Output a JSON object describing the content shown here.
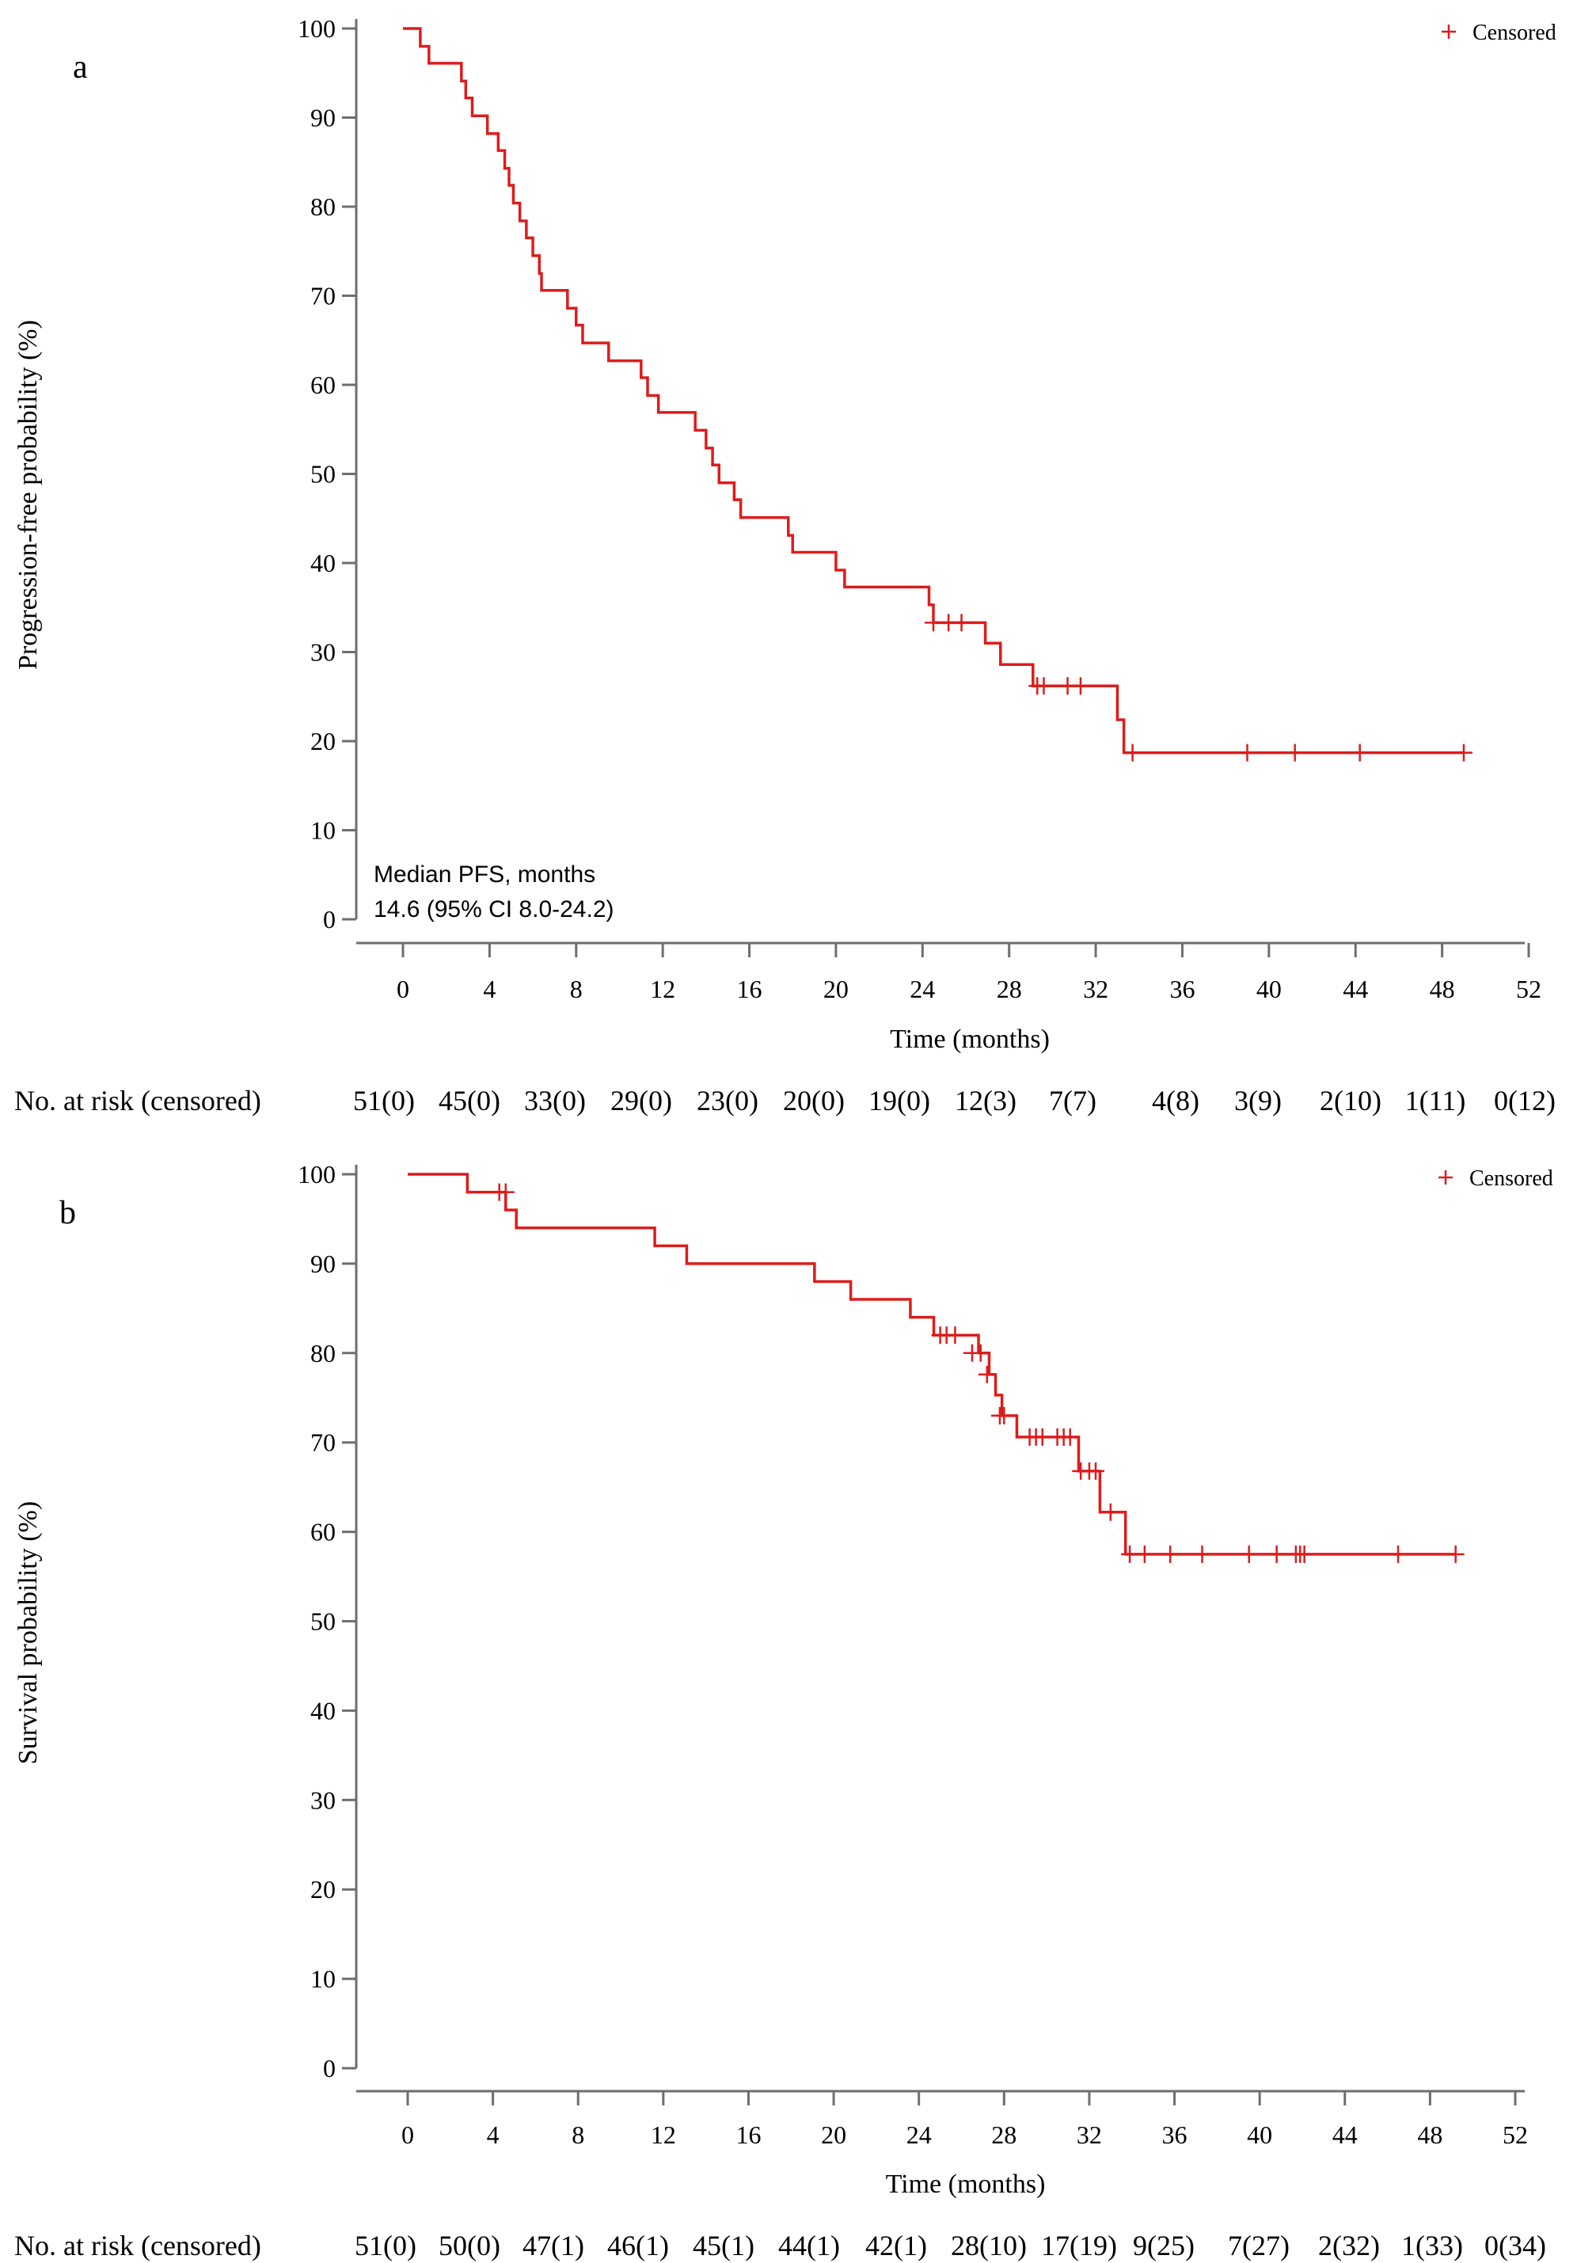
{
  "chart_data": [
    {
      "panel_label": "a",
      "type": "line",
      "step": true,
      "title": "",
      "xlabel": "Time (months)",
      "ylabel": "Progression-free probability (%)",
      "xlim": [
        0,
        52
      ],
      "ylim": [
        0,
        100
      ],
      "xticks": [
        "0",
        "4",
        "8",
        "12",
        "16",
        "20",
        "24",
        "28",
        "32",
        "36",
        "40",
        "44",
        "48",
        "52"
      ],
      "yticks": [
        "0",
        "10",
        "20",
        "30",
        "40",
        "50",
        "60",
        "70",
        "80",
        "90",
        "100"
      ],
      "grid": false,
      "color": "#dd1c1c",
      "legend": {
        "position": "top-right",
        "entries": [
          {
            "marker": "+",
            "label": "Censored"
          }
        ]
      },
      "annotation": [
        "Median PFS, months",
        "14.6 (95% CI 8.0-24.2)"
      ],
      "risk_table": {
        "label": "No. at risk (censored)",
        "values": [
          "51(0)",
          "45(0)",
          "33(0)",
          "29(0)",
          "23(0)",
          "20(0)",
          "19(0)",
          "12(3)",
          "7(7)",
          "4(8)",
          "3(9)",
          "2(10)",
          "1(11)",
          "0(12)"
        ]
      },
      "series": [
        {
          "steps": [
            [
              0,
              100
            ],
            [
              0.8,
              98
            ],
            [
              1.2,
              96.1
            ],
            [
              2.7,
              94.1
            ],
            [
              2.9,
              92.2
            ],
            [
              3.2,
              90.2
            ],
            [
              3.9,
              88.2
            ],
            [
              4.4,
              86.3
            ],
            [
              4.7,
              84.3
            ],
            [
              4.9,
              82.4
            ],
            [
              5.1,
              80.4
            ],
            [
              5.4,
              78.4
            ],
            [
              5.7,
              76.5
            ],
            [
              6.0,
              74.5
            ],
            [
              6.3,
              72.5
            ],
            [
              6.4,
              70.6
            ],
            [
              7.6,
              68.6
            ],
            [
              8.0,
              66.7
            ],
            [
              8.3,
              64.7
            ],
            [
              9.5,
              62.7
            ],
            [
              11.0,
              60.8
            ],
            [
              11.3,
              58.8
            ],
            [
              11.8,
              56.9
            ],
            [
              13.5,
              54.9
            ],
            [
              14.0,
              52.9
            ],
            [
              14.3,
              51.0
            ],
            [
              14.6,
              49.0
            ],
            [
              15.3,
              47.1
            ],
            [
              15.6,
              45.1
            ],
            [
              17.8,
              43.1
            ],
            [
              18.0,
              41.2
            ],
            [
              20.0,
              39.2
            ],
            [
              20.4,
              37.3
            ],
            [
              24.3,
              35.3
            ],
            [
              24.5,
              33.3
            ],
            [
              26.9,
              31.0
            ],
            [
              27.6,
              28.6
            ],
            [
              29.1,
              26.2
            ],
            [
              33.0,
              22.4
            ],
            [
              33.3,
              18.7
            ],
            [
              49.0,
              18.7
            ]
          ],
          "censored": [
            [
              24.5,
              33.3
            ],
            [
              25.2,
              33.3
            ],
            [
              25.8,
              33.3
            ],
            [
              29.3,
              26.2
            ],
            [
              29.6,
              26.2
            ],
            [
              30.7,
              26.2
            ],
            [
              31.3,
              26.2
            ],
            [
              33.7,
              18.7
            ],
            [
              39.0,
              18.7
            ],
            [
              41.2,
              18.7
            ],
            [
              44.2,
              18.7
            ],
            [
              49.0,
              18.7
            ]
          ]
        }
      ]
    },
    {
      "panel_label": "b",
      "type": "line",
      "step": true,
      "title": "",
      "xlabel": "Time (months)",
      "ylabel": "Survival probability (%)",
      "xlim": [
        0,
        52
      ],
      "ylim": [
        0,
        100
      ],
      "xticks": [
        "0",
        "4",
        "8",
        "12",
        "16",
        "20",
        "24",
        "28",
        "32",
        "36",
        "40",
        "44",
        "48",
        "52"
      ],
      "yticks": [
        "0",
        "10",
        "20",
        "30",
        "40",
        "50",
        "60",
        "70",
        "80",
        "90",
        "100"
      ],
      "grid": false,
      "color": "#dd1c1c",
      "legend": {
        "position": "top-right",
        "entries": [
          {
            "marker": "+",
            "label": "Censored"
          }
        ]
      },
      "risk_table": {
        "label": "No. at risk (censored)",
        "values": [
          "51(0)",
          "50(0)",
          "47(1)",
          "46(1)",
          "45(1)",
          "44(1)",
          "42(1)",
          "28(10)",
          "17(19)",
          "9(25)",
          "7(27)",
          "2(32)",
          "1(33)",
          "0(34)"
        ]
      },
      "series": [
        {
          "steps": [
            [
              0,
              100
            ],
            [
              2.8,
              98
            ],
            [
              4.6,
              96
            ],
            [
              5.1,
              94
            ],
            [
              11.6,
              92
            ],
            [
              13.1,
              90
            ],
            [
              19.1,
              88
            ],
            [
              20.8,
              86
            ],
            [
              23.6,
              84
            ],
            [
              24.7,
              82
            ],
            [
              26.8,
              80
            ],
            [
              27.3,
              77.6
            ],
            [
              27.6,
              75.3
            ],
            [
              27.9,
              73
            ],
            [
              28.6,
              70.6
            ],
            [
              31.5,
              66.8
            ],
            [
              32.5,
              62.2
            ],
            [
              33.7,
              57.5
            ],
            [
              49.2,
              57.5
            ]
          ],
          "censored": [
            [
              4.3,
              98
            ],
            [
              4.6,
              98
            ],
            [
              25.0,
              82
            ],
            [
              25.3,
              82
            ],
            [
              25.7,
              82
            ],
            [
              26.5,
              80
            ],
            [
              26.9,
              80
            ],
            [
              27.2,
              77.6
            ],
            [
              27.8,
              73
            ],
            [
              28.0,
              73
            ],
            [
              29.2,
              70.6
            ],
            [
              29.5,
              70.6
            ],
            [
              29.8,
              70.6
            ],
            [
              30.5,
              70.6
            ],
            [
              30.8,
              70.6
            ],
            [
              31.1,
              70.6
            ],
            [
              31.6,
              66.8
            ],
            [
              32.0,
              66.8
            ],
            [
              32.3,
              66.8
            ],
            [
              33.0,
              62.2
            ],
            [
              33.9,
              57.5
            ],
            [
              34.6,
              57.5
            ],
            [
              35.8,
              57.5
            ],
            [
              37.3,
              57.5
            ],
            [
              39.5,
              57.5
            ],
            [
              40.8,
              57.5
            ],
            [
              41.7,
              57.5
            ],
            [
              41.9,
              57.5
            ],
            [
              42.1,
              57.5
            ],
            [
              46.5,
              57.5
            ],
            [
              49.2,
              57.5
            ]
          ]
        }
      ]
    }
  ]
}
